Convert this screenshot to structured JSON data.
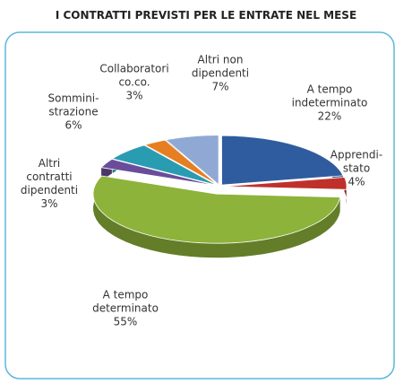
{
  "chart_data": {
    "type": "pie3d",
    "title": "I CONTRATTI PREVISTI PER LE ENTRATE NEL MESE",
    "categories": [
      "A tempo\nindeterminato",
      "Apprendi-\nstato",
      "A tempo\ndeterminato",
      "Altri\ncontratti\ndipendenti",
      "Sommini-\nstrazione",
      "Collaboratori\nco.co.",
      "Altri non\ndipendenti"
    ],
    "values": [
      22,
      4,
      55,
      3,
      6,
      3,
      7
    ],
    "value_labels": [
      "22%",
      "4%",
      "55%",
      "3%",
      "6%",
      "3%",
      "7%"
    ],
    "colors": [
      "#2f5c9e",
      "#c0302b",
      "#8db33a",
      "#6a4d9a",
      "#2a9cb2",
      "#e67e22",
      "#8fa9d4"
    ]
  }
}
